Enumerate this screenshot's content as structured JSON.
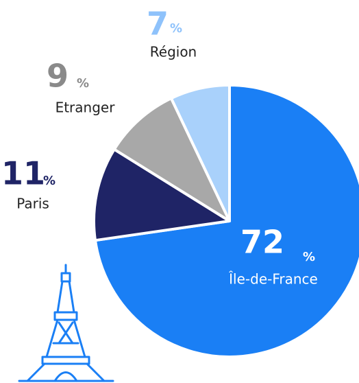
{
  "chart_data": {
    "type": "pie",
    "categories": [
      "Île-de-France",
      "Paris",
      "Etranger",
      "Région"
    ],
    "values": [
      72,
      11,
      9,
      7
    ],
    "colors": [
      "#1a7ff5",
      "#1f2466",
      "#a8a8a8",
      "#a9d1fb"
    ],
    "label_colors": [
      "#ffffff",
      "#1f2466",
      "#8a8a8a",
      "#8ec2fb"
    ],
    "unit": "%"
  }
}
